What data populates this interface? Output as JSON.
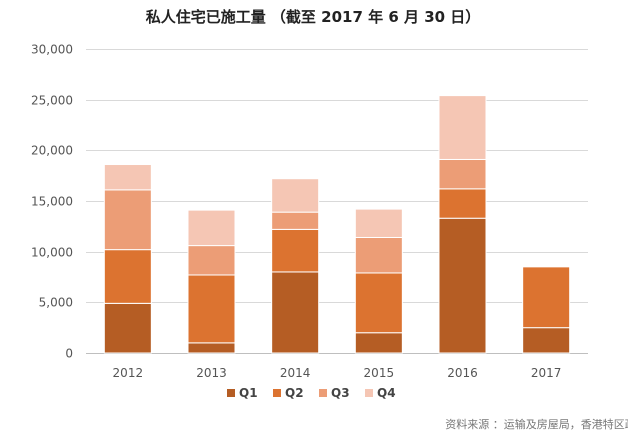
{
  "chart_data": {
    "type": "bar",
    "stacked": true,
    "title": "私人住宅已施工量 （截至 2017 年 6 月 30 日）",
    "categories": [
      "2012",
      "2013",
      "2014",
      "2015",
      "2016",
      "2017"
    ],
    "series": [
      {
        "name": "Q1",
        "color": "#b55d24",
        "values": [
          4900,
          1000,
          8000,
          2000,
          13300,
          2500
        ]
      },
      {
        "name": "Q2",
        "color": "#dc7330",
        "values": [
          5300,
          6700,
          4200,
          5900,
          2900,
          6000
        ]
      },
      {
        "name": "Q3",
        "color": "#ec9d76",
        "values": [
          5900,
          2900,
          1700,
          3500,
          2900,
          0
        ]
      },
      {
        "name": "Q4",
        "color": "#f5c6b4",
        "values": [
          2500,
          3500,
          3300,
          2800,
          6300,
          0
        ]
      }
    ],
    "y_ticks": [
      "0",
      "5,000",
      "10,000",
      "15,000",
      "20,000",
      "25,000",
      "30,000"
    ],
    "ylim": [
      0,
      30000
    ],
    "grid": true,
    "legend_position": "bottom"
  },
  "source_note": "资料来源 ：运输及房屋局，香港特区政府"
}
